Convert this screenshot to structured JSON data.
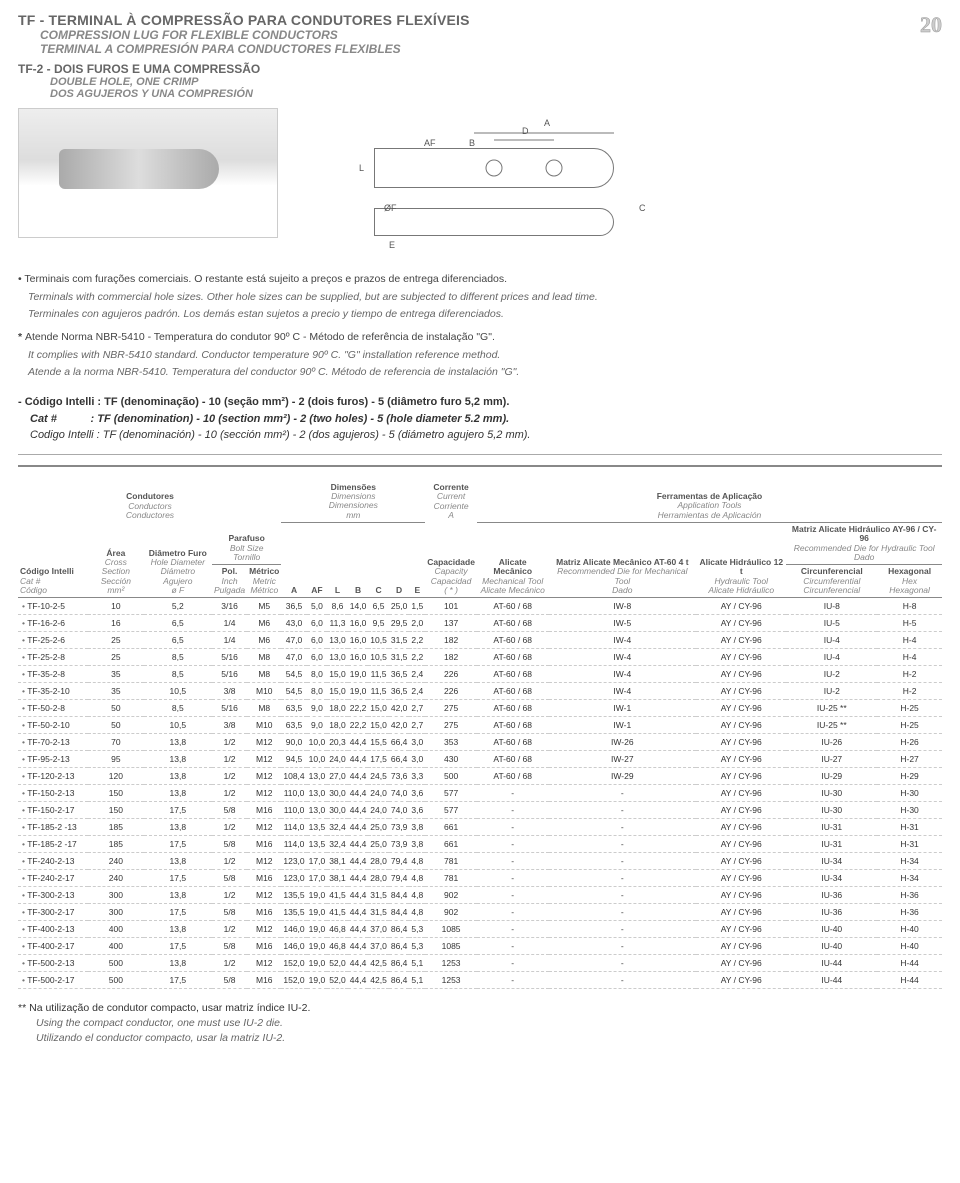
{
  "page_number": "20",
  "titles": {
    "pt": "TF - TERMINAL À COMPRESSÃO PARA CONDUTORES FLEXÍVEIS",
    "en": "COMPRESSION LUG FOR FLEXIBLE CONDUCTORS",
    "es": "TERMINAL A COMPRESIÓN PARA CONDUCTORES FLEXIBLES"
  },
  "subhead": {
    "code": "TF-2 -",
    "pt": "DOIS FUROS E UMA COMPRESSÃO",
    "en": "DOUBLE HOLE, ONE CRIMP",
    "es": "DOS AGUJEROS Y UNA COMPRESIÓN"
  },
  "diagram_labels": [
    "A",
    "D",
    "AF",
    "B",
    "L",
    "ØF",
    "C",
    "E"
  ],
  "notes": {
    "n1_pt": "Terminais com furações comerciais. O restante está sujeito a preços e prazos de entrega diferenciados.",
    "n1_en": "Terminals with commercial hole sizes. Other hole sizes can be supplied, but are subjected to different prices and lead time.",
    "n1_es": "Terminales con agujeros padrón. Los demás estan sujetos a precio y tiempo de entrega diferenciados.",
    "n2_pt": "Atende Norma NBR-5410 - Temperatura do condutor 90º C - Método de referência de instalação \"G\".",
    "n2_en": "It complies with NBR-5410 standard. Conductor temperature 90º C. \"G\" installation reference method.",
    "n2_es": "Atende a la norma NBR-5410. Temperatura del conductor 90º C. Método de referencia de instalación \"G\"."
  },
  "code_info": {
    "pt": "- Código Intelli : TF (denominação) - 10 (seção mm²) - 2 (dois furos) - 5 (diâmetro furo 5,2 mm).",
    "en": "Cat #           : TF (denomination) - 10 (section mm²) - 2 (two holes) - 5 (hole diameter 5.2 mm).",
    "es": "Codigo Intelli : TF (denominación) - 10 (sección mm²) - 2 (dos agujeros) - 5 (diámetro agujero 5,2 mm)."
  },
  "header_groups": {
    "cond": {
      "pt": "Condutores",
      "en": "Conductors",
      "es": "Conductores"
    },
    "dim": {
      "pt": "Dimensões",
      "en": "Dimensions",
      "es": "Dimensiones",
      "unit": "mm"
    },
    "curr": {
      "pt": "Corrente",
      "en": "Current",
      "es": "Corriente",
      "unit": "A"
    },
    "tools": {
      "pt": "Ferramentas de Aplicação",
      "en": "Application Tools",
      "es": "Herramientas de Aplicación"
    }
  },
  "columns": {
    "code": {
      "pt": "Código Intelli",
      "en": "Cat #",
      "es": "Código"
    },
    "area": {
      "pt": "Área",
      "en": "Cross Section",
      "es": "Sección",
      "unit": "mm²"
    },
    "diam": {
      "pt": "Diâmetro Furo",
      "en": "Hole Diameter",
      "es": "Diámetro Agujero",
      "sym": "ø F"
    },
    "bolt": {
      "pt": "Parafuso",
      "en": "Bolt Size",
      "es": "Tornillo"
    },
    "bolt_in": {
      "label": "Pol.",
      "en": "Inch",
      "es": "Pulgada"
    },
    "bolt_mm": {
      "label": "Métrico",
      "en": "Metric",
      "es": "Métrico"
    },
    "A": "A",
    "AF": "AF",
    "L": "L",
    "B": "B",
    "C": "C",
    "D": "D",
    "E": "E",
    "cap": {
      "pt": "Capacidade",
      "en": "Capacity",
      "es": "Capacidad",
      "note": "( * )"
    },
    "mech": {
      "pt": "Alicate Mecânico",
      "en": "Mechanical Tool",
      "es": "Alicate Mecánico"
    },
    "matmech": {
      "pt": "Matriz Alicate Mecânico AT-60 4 t",
      "en": "Recommended Die for Mechanical Tool",
      "es": "Dado"
    },
    "hyd": {
      "pt": "Alicate Hidráulico 12 t",
      "en": "Hydraulic Tool",
      "es": "Alicate Hidráulico"
    },
    "mathyd": {
      "pt": "Matriz Alicate Hidráulico AY-96 / CY-96",
      "en": "Recommended Die for Hydraulic Tool",
      "es": "Dado"
    },
    "circ": {
      "pt": "Circunferencial",
      "en": "Circumferential",
      "es": "Circunferencial"
    },
    "hex": {
      "pt": "Hexagonal",
      "en": "Hex",
      "es": "Hexagonal"
    }
  },
  "rows": [
    [
      "TF-10-2-5",
      "10",
      "5,2",
      "3/16",
      "M5",
      "36,5",
      "5,0",
      "8,6",
      "14,0",
      "6,5",
      "25,0",
      "1,5",
      "101",
      "AT-60 / 68",
      "IW-8",
      "AY / CY-96",
      "IU-8",
      "H-8"
    ],
    [
      "TF-16-2-6",
      "16",
      "6,5",
      "1/4",
      "M6",
      "43,0",
      "6,0",
      "11,3",
      "16,0",
      "9,5",
      "29,5",
      "2,0",
      "137",
      "AT-60 / 68",
      "IW-5",
      "AY / CY-96",
      "IU-5",
      "H-5"
    ],
    [
      "TF-25-2-6",
      "25",
      "6,5",
      "1/4",
      "M6",
      "47,0",
      "6,0",
      "13,0",
      "16,0",
      "10,5",
      "31,5",
      "2,2",
      "182",
      "AT-60 / 68",
      "IW-4",
      "AY / CY-96",
      "IU-4",
      "H-4"
    ],
    [
      "TF-25-2-8",
      "25",
      "8,5",
      "5/16",
      "M8",
      "47,0",
      "6,0",
      "13,0",
      "16,0",
      "10,5",
      "31,5",
      "2,2",
      "182",
      "AT-60 / 68",
      "IW-4",
      "AY / CY-96",
      "IU-4",
      "H-4"
    ],
    [
      "TF-35-2-8",
      "35",
      "8,5",
      "5/16",
      "M8",
      "54,5",
      "8,0",
      "15,0",
      "19,0",
      "11,5",
      "36,5",
      "2,4",
      "226",
      "AT-60 / 68",
      "IW-4",
      "AY / CY-96",
      "IU-2",
      "H-2"
    ],
    [
      "TF-35-2-10",
      "35",
      "10,5",
      "3/8",
      "M10",
      "54,5",
      "8,0",
      "15,0",
      "19,0",
      "11,5",
      "36,5",
      "2,4",
      "226",
      "AT-60 / 68",
      "IW-4",
      "AY / CY-96",
      "IU-2",
      "H-2"
    ],
    [
      "TF-50-2-8",
      "50",
      "8,5",
      "5/16",
      "M8",
      "63,5",
      "9,0",
      "18,0",
      "22,2",
      "15,0",
      "42,0",
      "2,7",
      "275",
      "AT-60 / 68",
      "IW-1",
      "AY / CY-96",
      "IU-25 **",
      "H-25"
    ],
    [
      "TF-50-2-10",
      "50",
      "10,5",
      "3/8",
      "M10",
      "63,5",
      "9,0",
      "18,0",
      "22,2",
      "15,0",
      "42,0",
      "2,7",
      "275",
      "AT-60 / 68",
      "IW-1",
      "AY / CY-96",
      "IU-25 **",
      "H-25"
    ],
    [
      "TF-70-2-13",
      "70",
      "13,8",
      "1/2",
      "M12",
      "90,0",
      "10,0",
      "20,3",
      "44,4",
      "15,5",
      "66,4",
      "3,0",
      "353",
      "AT-60 / 68",
      "IW-26",
      "AY / CY-96",
      "IU-26",
      "H-26"
    ],
    [
      "TF-95-2-13",
      "95",
      "13,8",
      "1/2",
      "M12",
      "94,5",
      "10,0",
      "24,0",
      "44,4",
      "17,5",
      "66,4",
      "3,0",
      "430",
      "AT-60 / 68",
      "IW-27",
      "AY / CY-96",
      "IU-27",
      "H-27"
    ],
    [
      "TF-120-2-13",
      "120",
      "13,8",
      "1/2",
      "M12",
      "108,4",
      "13,0",
      "27,0",
      "44,4",
      "24,5",
      "73,6",
      "3,3",
      "500",
      "AT-60 / 68",
      "IW-29",
      "AY / CY-96",
      "IU-29",
      "H-29"
    ],
    [
      "TF-150-2-13",
      "150",
      "13,8",
      "1/2",
      "M12",
      "110,0",
      "13,0",
      "30,0",
      "44,4",
      "24,0",
      "74,0",
      "3,6",
      "577",
      "-",
      "-",
      "AY / CY-96",
      "IU-30",
      "H-30"
    ],
    [
      "TF-150-2-17",
      "150",
      "17,5",
      "5/8",
      "M16",
      "110,0",
      "13,0",
      "30,0",
      "44,4",
      "24,0",
      "74,0",
      "3,6",
      "577",
      "-",
      "-",
      "AY / CY-96",
      "IU-30",
      "H-30"
    ],
    [
      "TF-185-2 -13",
      "185",
      "13,8",
      "1/2",
      "M12",
      "114,0",
      "13,5",
      "32,4",
      "44,4",
      "25,0",
      "73,9",
      "3,8",
      "661",
      "-",
      "-",
      "AY / CY-96",
      "IU-31",
      "H-31"
    ],
    [
      "TF-185-2 -17",
      "185",
      "17,5",
      "5/8",
      "M16",
      "114,0",
      "13,5",
      "32,4",
      "44,4",
      "25,0",
      "73,9",
      "3,8",
      "661",
      "-",
      "-",
      "AY / CY-96",
      "IU-31",
      "H-31"
    ],
    [
      "TF-240-2-13",
      "240",
      "13,8",
      "1/2",
      "M12",
      "123,0",
      "17,0",
      "38,1",
      "44,4",
      "28,0",
      "79,4",
      "4,8",
      "781",
      "-",
      "-",
      "AY / CY-96",
      "IU-34",
      "H-34"
    ],
    [
      "TF-240-2-17",
      "240",
      "17,5",
      "5/8",
      "M16",
      "123,0",
      "17,0",
      "38,1",
      "44,4",
      "28,0",
      "79,4",
      "4,8",
      "781",
      "-",
      "-",
      "AY / CY-96",
      "IU-34",
      "H-34"
    ],
    [
      "TF-300-2-13",
      "300",
      "13,8",
      "1/2",
      "M12",
      "135,5",
      "19,0",
      "41,5",
      "44,4",
      "31,5",
      "84,4",
      "4,8",
      "902",
      "-",
      "-",
      "AY / CY-96",
      "IU-36",
      "H-36"
    ],
    [
      "TF-300-2-17",
      "300",
      "17,5",
      "5/8",
      "M16",
      "135,5",
      "19,0",
      "41,5",
      "44,4",
      "31,5",
      "84,4",
      "4,8",
      "902",
      "-",
      "-",
      "AY / CY-96",
      "IU-36",
      "H-36"
    ],
    [
      "TF-400-2-13",
      "400",
      "13,8",
      "1/2",
      "M12",
      "146,0",
      "19,0",
      "46,8",
      "44,4",
      "37,0",
      "86,4",
      "5,3",
      "1085",
      "-",
      "-",
      "AY / CY-96",
      "IU-40",
      "H-40"
    ],
    [
      "TF-400-2-17",
      "400",
      "17,5",
      "5/8",
      "M16",
      "146,0",
      "19,0",
      "46,8",
      "44,4",
      "37,0",
      "86,4",
      "5,3",
      "1085",
      "-",
      "-",
      "AY / CY-96",
      "IU-40",
      "H-40"
    ],
    [
      "TF-500-2-13",
      "500",
      "13,8",
      "1/2",
      "M12",
      "152,0",
      "19,0",
      "52,0",
      "44,4",
      "42,5",
      "86,4",
      "5,1",
      "1253",
      "-",
      "-",
      "AY / CY-96",
      "IU-44",
      "H-44"
    ],
    [
      "TF-500-2-17",
      "500",
      "17,5",
      "5/8",
      "M16",
      "152,0",
      "19,0",
      "52,0",
      "44,4",
      "42,5",
      "86,4",
      "5,1",
      "1253",
      "-",
      "-",
      "AY / CY-96",
      "IU-44",
      "H-44"
    ]
  ],
  "footnote": {
    "mark": "**",
    "pt": "Na utilização de condutor compacto, usar matriz índice IU-2.",
    "en": "Using the compact conductor, one must use IU-2 die.",
    "es": "Utilizando el conductor compacto, usar la matriz IU-2."
  }
}
